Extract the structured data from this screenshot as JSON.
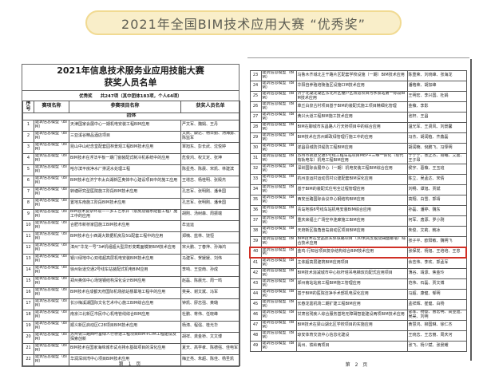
{
  "banner": {
    "title": "2021年全国BIM技术应用大赛 “优秀奖”",
    "bg_color": "#f9eec9",
    "border_color": "#f1da92"
  },
  "colors": {
    "highlight_border": "#d03026",
    "table_border": "#5a5a5a"
  },
  "category_default": "建筑信息模型（BIM）",
  "page1": {
    "title_line1": "2021年信息技术服务业应用技能大赛",
    "title_line2": "获奖人员名单",
    "subtitle_award": "优秀奖",
    "subtitle_count": "共247项（其中团体183项，个人64项）",
    "columns": [
      "序号",
      "赛项名称",
      "参赛项目名称",
      "获奖人员名单"
    ],
    "section": "团体",
    "footer": "第 1 页",
    "rows": [
      {
        "no": "1",
        "category": "建筑信息模型（BIM）",
        "project": "天津国家会展中心一期机电安装工程BIM应用",
        "names": "严文军、魏娟、王丹"
      },
      {
        "no": "2",
        "category": "建筑信息模型（BIM）",
        "project": "三亚溪谷精品酒店项目",
        "names": "文武、康达、杨日勤、汤海勇、陈监军"
      },
      {
        "no": "3",
        "category": "建筑信息模型（BIM）",
        "project": "昆山中山纪念堂配套园林景观工程BIM技术应用",
        "names": "覃旭东、彭长武、沈悦婷"
      },
      {
        "no": "4",
        "category": "建筑信息模型（BIM）",
        "project": "BIM技术在浮法平板一期门窗装配式制冷机系统中的应用",
        "names": "危俊鸿、权文定、张坤"
      },
      {
        "no": "5",
        "category": "建筑信息模型（BIM）",
        "project": "哈尔滨平房净水厂排泥水处理工程",
        "names": "陈星亮、陈晨、宋凯、林建滨"
      },
      {
        "no": "6",
        "category": "建筑信息模型（BIM）",
        "project": "BIM技术在济宁市太白湖新区奥体中心建设项目中的施工应用",
        "names": "王增志、杨桂明、张殿杰"
      },
      {
        "no": "7",
        "category": "建筑信息模型（BIM）",
        "project": "转塘研究型医院施工阶段BIM技术应用",
        "names": "孔志军、张明刚、潘世国"
      },
      {
        "no": "8",
        "category": "建筑信息模型（BIM）",
        "project": "置地东南施工阶段BIM技术应用",
        "names": "孔志军、张明刚、潘世国"
      },
      {
        "no": "9",
        "category": "建筑信息模型（BIM）",
        "project": "BIM技术复杂环境——多工艺水井（泵房及输水配套工程）施工中的应用",
        "names": "胡刚、汤树森、周振端"
      },
      {
        "no": "10",
        "category": "建筑信息模型（BIM）",
        "project": "合肥市新桥家园施工BIM技术应用",
        "names": "牟运运"
      },
      {
        "no": "11",
        "category": "建筑信息模型（BIM）",
        "project": "BIM技术在小西湖大数据机房及5G配套工程中的应用",
        "names": "郑楠、蓝林、饶恒"
      },
      {
        "no": "12",
        "category": "建筑信息模型（BIM）",
        "project": "漳州“华龙一号”3#机组超大型异形变截面模架BIM技术应用",
        "names": "宋大鹏、丁春萍、孙海鸿"
      },
      {
        "no": "13",
        "category": "建筑信息模型（BIM）",
        "project": "银川绿地中心双塔超高层机电安装BIM技术应用",
        "names": "马建军、贺媛媛、刘伟"
      },
      {
        "no": "14",
        "category": "建筑信息模型（BIM）",
        "project": "徐州轨道交通2号线车站装配式机电BIM应用",
        "names": "李响、王亚南、孙成"
      },
      {
        "no": "15",
        "category": "建筑信息模型（BIM）",
        "project": "郑州奥体中心场馆钢结构深化设计BIM应用",
        "names": "赵磊、陈晨光、周一鸣"
      },
      {
        "no": "16",
        "category": "建筑信息模型（BIM）",
        "project": "BIM技术在成都天府国际机场航站楼幕墙工程中的应用",
        "names": "吴昊、谢文斌、冯军"
      },
      {
        "no": "17",
        "category": "建筑信息模型（BIM）",
        "project": "长沙梅溪湖国际文化艺术中心施工BIM综合应用",
        "names": "钟凯、廖志强、黄璐"
      },
      {
        "no": "18",
        "category": "建筑信息模型（BIM）",
        "project": "南京江北新区市民中心机电管线综合BIM应用",
        "names": "杜鹏、蒋伟、任晓峰"
      },
      {
        "no": "19",
        "category": "建筑信息模型（BIM）",
        "project": "顺义新区启动区C28项目BIM技术应用",
        "names": "杨涛、程强、桂光华"
      },
      {
        "no": "20",
        "category": "建筑信息模型（BIM）",
        "project": "苏州胥江路西叶垂绿人行桥道工程项目BIM+CIM工程建设及探索创新",
        "names": "胡祥、龚金桥、文文博"
      },
      {
        "no": "21",
        "category": "建筑信息模型（BIM）",
        "project": "BIM技术在国家海绵城市试点排水基础项目的深化应用",
        "names": "夏天、高学孝、陈德强、佳电军"
      },
      {
        "no": "22",
        "category": "建筑信息模型（BIM）",
        "project": "华润深圳湾中心项目BIM技术应用",
        "names": "梅正亮、朱超、陈佳、杨圣凯"
      }
    ]
  },
  "page2": {
    "footer": "第 2 页",
    "rows": [
      {
        "no": "23",
        "category": "建筑信息模型（BIM）",
        "project": "乌鲁木齐城北主干路片区配套学校设施（一期）BIM技术应用",
        "names": "陈重荣、刘晓峰、张海龙"
      },
      {
        "no": "24",
        "category": "建筑信息模型（BIM）",
        "project": "华阳自养殖培陵渔区设施CIM技术应用",
        "names": "潘格荣、胡加峰"
      },
      {
        "no": "25",
        "category": "建筑信息模型（BIM）",
        "project": "济宁北湖龙湖区东北片区棚户区改造项目污水泵站第一标段BIM技术应用",
        "names": "王明宏、李兴国、杜娟"
      },
      {
        "no": "26",
        "category": "建筑信息模型（BIM）",
        "project": "章丘白泉古村项目基于BIM的装配式施工项目精细化管理",
        "names": "金薇、李影"
      },
      {
        "no": "27",
        "category": "建筑信息模型（BIM）",
        "project": "黄兴大道工程BIM施工技术应用",
        "names": "池轩、王昌"
      },
      {
        "no": "28",
        "category": "建筑信息模型（BIM）",
        "project": "BIM在聊城市东昌路人行天桥项目中的综合应用",
        "names": "温光军、王贤风、刘景馨"
      },
      {
        "no": "29",
        "category": "建筑信息模型（BIM）",
        "project": "BIM技术在苏州邮政绿管理行施工中的应用",
        "names": "冯杰、胡润植、齐鑫磊"
      },
      {
        "no": "30",
        "category": "建筑信息模型（BIM）",
        "project": "遂昌县城防洪堤防工程BIM应用",
        "names": "胡润楠、倪鹏飞、冯怿明"
      },
      {
        "no": "31",
        "category": "建筑信息模型（BIM）",
        "project": "苏州市轨道交通5号线工程车站项目MEP+三维一体化（现代有轨电车）机电工程BIM应用",
        "names": "于宁宁、张正杰、肖曦、艾嘉、王子昂"
      },
      {
        "no": "32",
        "category": "建筑信息模型（BIM）",
        "project": "深圳国际会展中心（一期）机电安装工程BIM综合应用",
        "names": "侯宇、葛薇、王玉班"
      },
      {
        "no": "33",
        "category": "建筑信息模型（BIM）",
        "project": "杭州亚运村运动员村公建配套BIM深化应用",
        "names": "陈立、吴孟达、宋倩"
      },
      {
        "no": "34",
        "category": "建筑信息模型（BIM）",
        "project": "基于BIM的装配式住宅全过程管理应用",
        "names": "刘畅、谭旭、贾斌"
      },
      {
        "no": "35",
        "category": "建筑信息模型（BIM）",
        "project": "西安丝路国际会议中心钢结构BIM应用",
        "names": "高翔、白雪、郭靖"
      },
      {
        "no": "36",
        "category": "建筑信息模型（BIM）",
        "project": "青岛地铁6号线车站机电安装BIM综合应用",
        "names": "孙磊、潘婷、魏东"
      },
      {
        "no": "37",
        "category": "建筑信息模型（BIM）",
        "project": "重庆来福士广场空中连廊施工BIM应用",
        "names": "何军、唐源、罗小刚"
      },
      {
        "no": "38",
        "category": "建筑信息模型（BIM）",
        "project": "天府新区独角兽岛启动区项目BIM应用",
        "names": "朱俊、文莉、韩冰"
      },
      {
        "no": "39",
        "category": "建筑信息模型（BIM）",
        "project": "BIM技术在全品质实体铁路项目（30米高支模及曲面幕墙）综合技术应用",
        "names": "张子平、欧阳敏、魏明飞"
      },
      {
        "no": "40",
        "category": "建筑信息模型（BIM）",
        "project": "金鸡·行知谷项目复杂结构综合BIM技术应用",
        "names": "张保发、杨旭、王培培、王忠",
        "highlight": true
      },
      {
        "no": "41",
        "category": "建筑信息模型（BIM）",
        "project": "主体超高层建筑BIM应用项目",
        "names": "余志伟、李欢、郭孟军"
      },
      {
        "no": "42",
        "category": "建筑信息模型（BIM）",
        "project": "BIM技术消减城市中心标杆塔吊电梯双向配式应用项目",
        "names": "薄谷、靖源、焦金玲"
      },
      {
        "no": "43",
        "category": "建筑信息模型（BIM）",
        "project": "郑州南站站房工程BIM施工管理应用",
        "names": "范伟、石磊、贾文博"
      },
      {
        "no": "44",
        "category": "建筑信息模型（BIM）",
        "project": "基于BIM的医院洁净手术部机电深化应用",
        "names": "马超、康健、邹明"
      },
      {
        "no": "45",
        "category": "建筑信息模型（BIM）",
        "project": "长春龙嘉机场二期扩建工程BIM应用",
        "names": "孟祥辉、崔健、白杨"
      },
      {
        "no": "46",
        "category": "建筑信息模型（BIM）",
        "project": "甘肃省残疾人综合服务基地无障碍智能建设两项BIM技术应用",
        "names": "郑军、杨攀、曹宏明、高亚迪、吴昊、刘明"
      },
      {
        "no": "47",
        "category": "建筑信息模型（BIM）",
        "project": "BIM技术在梁山湖北区学校项目的实施应用",
        "names": "黄慧鸿、柳国琳、徐仁杰"
      },
      {
        "no": "48",
        "category": "建筑信息模型（BIM）",
        "project": "琼安体育交流中心信息化建设",
        "names": "王晓志、王志丽、周庆河"
      },
      {
        "no": "49",
        "category": "建筑信息模型（BIM）",
        "project": "禹州、铁岭两项目",
        "names": "张飞、杨少斌、张景耀"
      }
    ]
  }
}
